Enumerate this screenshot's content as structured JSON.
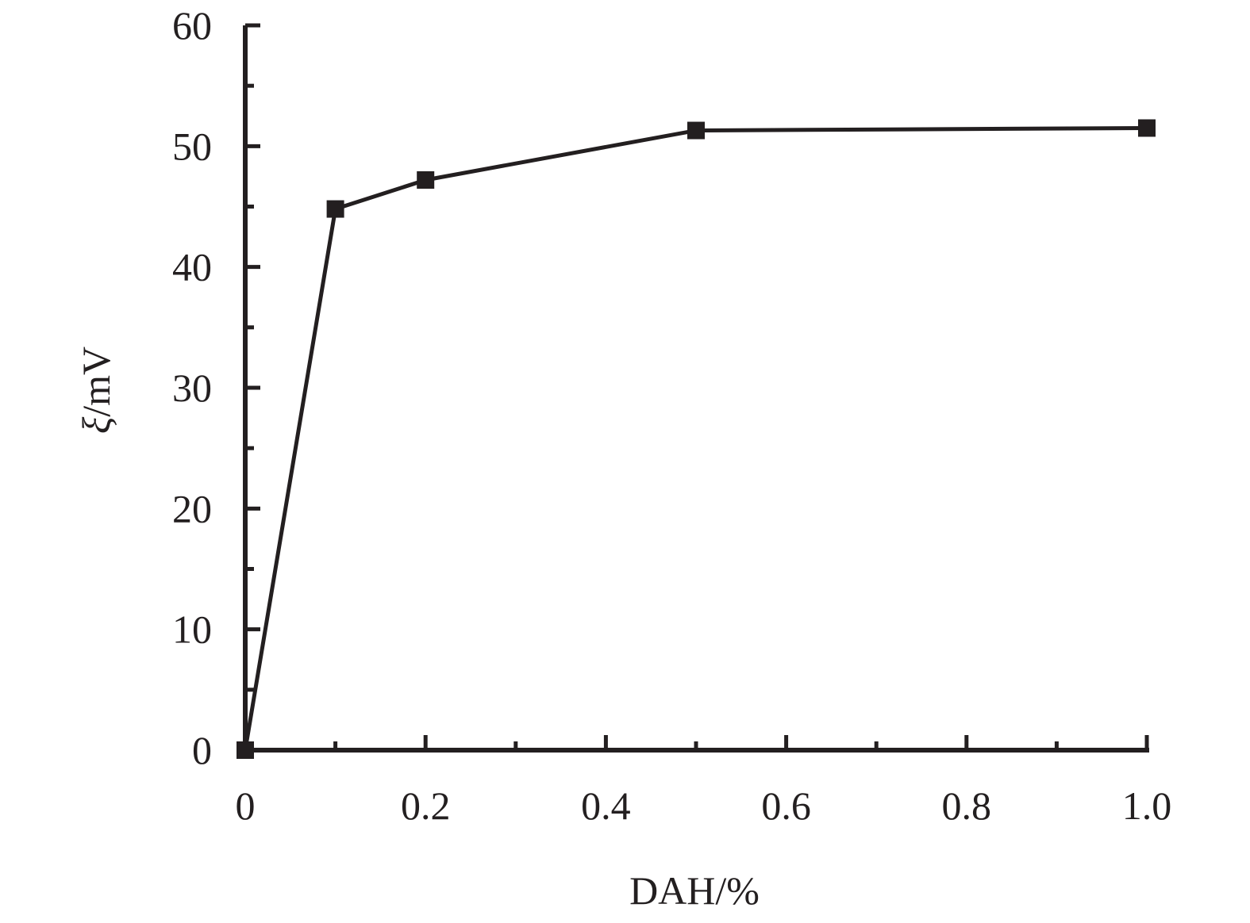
{
  "chart_data": {
    "type": "line",
    "title": "",
    "xlabel": "DAH/%",
    "ylabel_symbol": "ξ",
    "ylabel_unit": "/mV",
    "xlim": [
      0,
      1.0
    ],
    "ylim": [
      0,
      60
    ],
    "x_ticks": [
      0,
      0.2,
      0.4,
      0.6,
      0.8,
      1.0
    ],
    "x_tick_labels": [
      "0",
      "0.2",
      "0.4",
      "0.6",
      "0.8",
      "1.0"
    ],
    "x_minor_step": 0.1,
    "y_ticks": [
      0,
      10,
      20,
      30,
      40,
      50,
      60
    ],
    "y_tick_labels": [
      "0",
      "10",
      "20",
      "30",
      "40",
      "50",
      "60"
    ],
    "y_minor_step": 5,
    "grid": false,
    "legend": "none",
    "series": [
      {
        "marker": "square",
        "color": "#231f20",
        "x": [
          0,
          0.1,
          0.2,
          0.5,
          1.0
        ],
        "y": [
          0,
          44.8,
          47.2,
          51.3,
          51.5
        ]
      }
    ]
  }
}
